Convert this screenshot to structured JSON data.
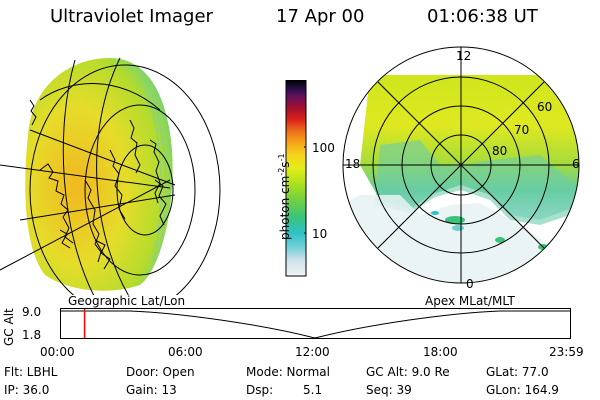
{
  "header": {
    "instrument": "Ultraviolet Imager",
    "date": "17 Apr 00",
    "time": "01:06:38 UT"
  },
  "colorbar": {
    "label": "photon cm",
    "label_sup1": "-2",
    "label_mid": "s",
    "label_sup2": "-1",
    "tick_100": "100",
    "tick_10": "10",
    "colors": [
      "#eef4f4",
      "#cfe3ea",
      "#6fd0d6",
      "#2ec1c6",
      "#39c47a",
      "#7ad23a",
      "#b4e21c",
      "#e3ec1a",
      "#f8d21c",
      "#f5a41a",
      "#ee6f1a",
      "#d9201a",
      "#a01030",
      "#601060",
      "#201040",
      "#000000"
    ]
  },
  "left_panel": {
    "caption": "Geographic Lat/Lon"
  },
  "right_panel": {
    "caption": "Apex MLat/MLT",
    "mlt_labels": {
      "top": "12",
      "left": "18",
      "right": "6",
      "bottom": "0"
    },
    "lat_labels": [
      "60",
      "70",
      "80"
    ]
  },
  "timeline": {
    "ylabel": "GC Alt",
    "y_top": "9.0",
    "y_bottom": "1.8",
    "ticks": [
      "00:00",
      "06:00",
      "12:00",
      "18:00",
      "23:59"
    ],
    "marker_time": "01:06:38",
    "marker_color": "#ff0000"
  },
  "status": {
    "filter": "Flt: LBHL",
    "ip": "IP: 36.0",
    "door": "Door: Open",
    "gain": "Gain: 13",
    "mode": "Mode: Normal",
    "dsp_label": "Dsp:",
    "dsp_value": "5.1",
    "gcalt": "GC Alt: 9.0 Re",
    "seq": "Seq: 39",
    "glat": "GLat: 77.0",
    "glon": "GLon: 164.9"
  }
}
